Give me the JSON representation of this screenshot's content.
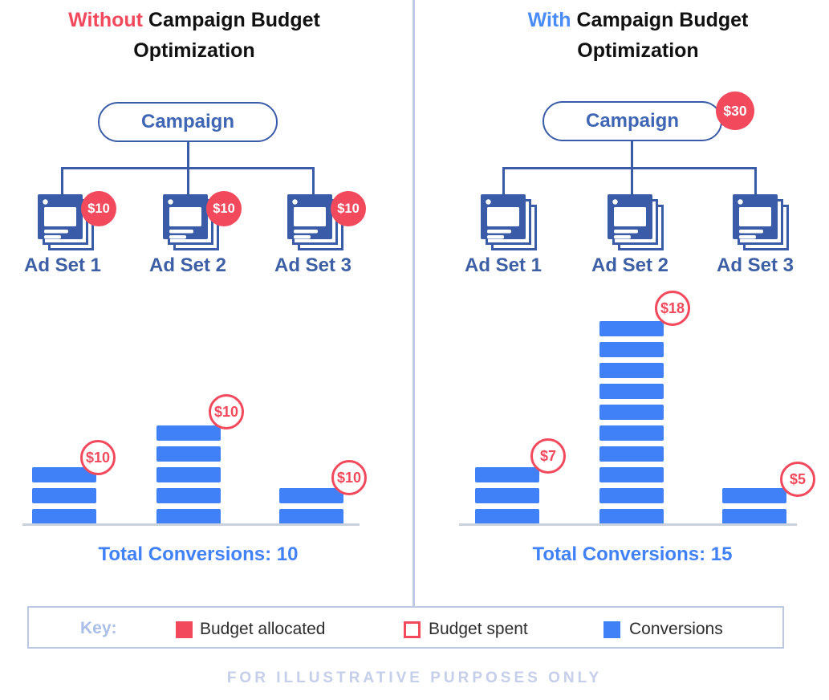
{
  "panels": [
    {
      "title": {
        "highlight": "Without",
        "rest": "Campaign Budget",
        "line2": "Optimization"
      },
      "campaign": {
        "label": "Campaign"
      },
      "ad_sets": [
        {
          "label": "Ad Set 1",
          "allocated": "$10",
          "spent": "$10",
          "conversions": 3
        },
        {
          "label": "Ad Set 2",
          "allocated": "$10",
          "spent": "$10",
          "conversions": 5
        },
        {
          "label": "Ad Set 3",
          "allocated": "$10",
          "spent": "$10",
          "conversions": 2
        }
      ],
      "total": "Total Conversions: 10"
    },
    {
      "title": {
        "highlight": "With",
        "rest": "Campaign Budget",
        "line2": "Optimization"
      },
      "campaign": {
        "label": "Campaign",
        "badge": "$30"
      },
      "ad_sets": [
        {
          "label": "Ad Set 1",
          "spent": "$7",
          "conversions": 3
        },
        {
          "label": "Ad Set 2",
          "spent": "$18",
          "conversions": 10
        },
        {
          "label": "Ad Set 3",
          "spent": "$5",
          "conversions": 2
        }
      ],
      "total": "Total Conversions: 15"
    }
  ],
  "legend": {
    "key_label": "Key:",
    "items": [
      {
        "label": "Budget allocated"
      },
      {
        "label": "Budget spent"
      },
      {
        "label": "Conversions"
      }
    ]
  },
  "footer": "FOR ILLUSTRATIVE PURPOSES ONLY",
  "colors": {
    "red": "#F2495C",
    "with_blue": "#4A8CF7",
    "dark_blue": "#3A5CA8",
    "campaign_blue": "#3E66B5",
    "adset_blue": "#3D5FA6",
    "bar_blue": "#4181F8",
    "total_blue": "#4181F8",
    "baseline": "#C9D1DF",
    "divider": "#C0CAE4",
    "key_border": "#BCC7E2",
    "key_label": "#A9BEE9",
    "footer": "#C5CEEA",
    "legend_text": "#2D2D2D",
    "title_black": "#111111"
  }
}
